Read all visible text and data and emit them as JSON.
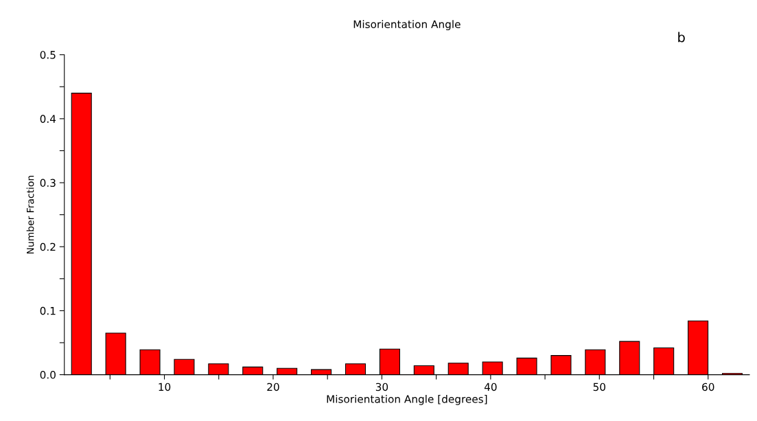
{
  "chart_data": {
    "type": "histogram",
    "title": "Misorientation Angle",
    "xlabel": "Misorientation Angle [degrees]",
    "ylabel": "Number Fraction",
    "annotations": [
      "b"
    ],
    "bins": [
      0.8,
      3.95,
      7.1,
      10.25,
      13.4,
      16.55,
      19.7,
      22.85,
      26.0,
      29.15,
      32.3,
      35.45,
      38.6,
      41.75,
      44.9,
      48.05,
      51.2,
      54.35,
      57.5,
      60.65,
      63.8
    ],
    "values": [
      0.44,
      0.065,
      0.039,
      0.024,
      0.017,
      0.012,
      0.01,
      0.008,
      0.017,
      0.04,
      0.014,
      0.018,
      0.02,
      0.026,
      0.03,
      0.039,
      0.052,
      0.042,
      0.084,
      0.002
    ],
    "color": "#ff0000",
    "xlim": [
      0.8,
      63.8
    ],
    "ylim": [
      0,
      0.5
    ],
    "xticks": [
      {
        "value": 5,
        "label": null
      },
      10,
      {
        "value": 15,
        "label": null
      },
      20,
      {
        "value": 25,
        "label": null
      },
      30,
      {
        "value": 35,
        "label": null
      },
      40,
      {
        "value": 45,
        "label": null
      },
      50,
      {
        "value": 55,
        "label": null
      },
      60
    ],
    "yticks": [
      {
        "value": 0,
        "label": "0.0"
      },
      {
        "value": 0.05,
        "label": null
      },
      0.1,
      {
        "value": 0.15,
        "label": null
      },
      0.2,
      {
        "value": 0.25,
        "label": null
      },
      0.3,
      {
        "value": 0.35,
        "label": null
      },
      0.4,
      {
        "value": 0.45,
        "label": null
      },
      0.5
    ],
    "grid": false
  }
}
